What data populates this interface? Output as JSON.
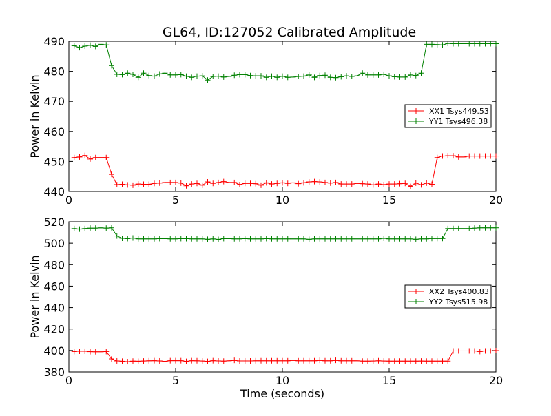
{
  "chart_data": [
    {
      "type": "line",
      "title": "GL64, ID:127052 Calibrated Amplitude",
      "xlabel": "",
      "ylabel": "Power in Kelvin",
      "xlim": [
        0,
        20
      ],
      "ylim": [
        440,
        490
      ],
      "xticks": [
        0,
        5,
        10,
        15,
        20
      ],
      "yticks": [
        440,
        450,
        460,
        470,
        480,
        490
      ],
      "grid": false,
      "legend_position": "right",
      "x": [
        0.25,
        0.5,
        0.75,
        1.0,
        1.25,
        1.5,
        1.75,
        2.0,
        2.25,
        2.5,
        2.75,
        3.0,
        3.25,
        3.5,
        3.75,
        4.0,
        4.25,
        4.5,
        4.75,
        5.0,
        5.25,
        5.5,
        5.75,
        6.0,
        6.25,
        6.5,
        6.75,
        7.0,
        7.25,
        7.5,
        7.75,
        8.0,
        8.25,
        8.5,
        8.75,
        9.0,
        9.25,
        9.5,
        9.75,
        10.0,
        10.25,
        10.5,
        10.75,
        11.0,
        11.25,
        11.5,
        11.75,
        12.0,
        12.25,
        12.5,
        12.75,
        13.0,
        13.25,
        13.5,
        13.75,
        14.0,
        14.25,
        14.5,
        14.75,
        15.0,
        15.25,
        15.5,
        15.75,
        16.0,
        16.25,
        16.5,
        16.75,
        17.0,
        17.25,
        17.5,
        17.75,
        18.0,
        18.25,
        18.5,
        18.75,
        19.0,
        19.25,
        19.5,
        19.75,
        20.0
      ],
      "series": [
        {
          "name": "XX1 Tsys449.53",
          "color": "#ff0000",
          "values": [
            451.3,
            451.5,
            452.0,
            450.8,
            451.3,
            451.3,
            451.3,
            445.7,
            442.3,
            442.4,
            442.2,
            442.1,
            442.5,
            442.4,
            442.4,
            442.7,
            442.8,
            443.0,
            443.0,
            443.0,
            442.8,
            441.9,
            442.5,
            442.7,
            442.1,
            443.2,
            442.7,
            443.0,
            443.3,
            443.0,
            443.0,
            442.3,
            442.7,
            442.7,
            442.6,
            442.1,
            442.9,
            442.5,
            442.7,
            442.9,
            442.7,
            442.9,
            442.6,
            442.9,
            443.2,
            443.3,
            443.2,
            443.0,
            442.8,
            443.0,
            442.5,
            442.5,
            442.5,
            442.7,
            442.6,
            442.5,
            442.2,
            442.5,
            442.3,
            442.5,
            442.5,
            442.6,
            442.7,
            441.7,
            442.8,
            442.2,
            442.8,
            442.4,
            451.3,
            451.8,
            451.9,
            451.9,
            451.5,
            451.5,
            451.8,
            451.8,
            451.8,
            451.8,
            451.8,
            451.8
          ]
        },
        {
          "name": "YY1 Tsys496.38",
          "color": "#008000",
          "values": [
            488.5,
            487.9,
            488.4,
            488.7,
            488.3,
            489.0,
            488.8,
            481.9,
            479.0,
            478.9,
            479.4,
            479.0,
            478.0,
            479.4,
            478.6,
            478.4,
            479.1,
            479.4,
            478.8,
            478.8,
            478.9,
            478.4,
            478.0,
            478.4,
            478.5,
            477.1,
            478.3,
            478.4,
            478.1,
            478.3,
            478.7,
            478.9,
            478.9,
            478.6,
            478.5,
            478.5,
            478.0,
            478.4,
            478.0,
            478.4,
            478.0,
            478.1,
            478.3,
            478.4,
            478.8,
            478.0,
            478.6,
            478.7,
            478.0,
            477.9,
            478.2,
            478.5,
            478.3,
            478.5,
            479.4,
            478.8,
            478.8,
            478.8,
            479.0,
            478.5,
            478.2,
            478.1,
            478.1,
            478.8,
            478.6,
            479.4,
            489.0,
            489.0,
            488.9,
            488.8,
            489.3,
            489.2,
            489.2,
            489.2,
            489.2,
            489.2,
            489.2,
            489.2,
            489.2,
            489.2
          ]
        }
      ]
    },
    {
      "type": "line",
      "title": "",
      "xlabel": "Time (seconds)",
      "ylabel": "Power in Kelvin",
      "xlim": [
        0,
        20
      ],
      "ylim": [
        380,
        520
      ],
      "xticks": [
        0,
        5,
        10,
        15,
        20
      ],
      "yticks": [
        380,
        400,
        420,
        440,
        460,
        480,
        500,
        520
      ],
      "grid": false,
      "legend_position": "right",
      "x": [
        0.25,
        0.5,
        0.75,
        1.0,
        1.25,
        1.5,
        1.75,
        2.0,
        2.25,
        2.5,
        2.75,
        3.0,
        3.25,
        3.5,
        3.75,
        4.0,
        4.25,
        4.5,
        4.75,
        5.0,
        5.25,
        5.5,
        5.75,
        6.0,
        6.25,
        6.5,
        6.75,
        7.0,
        7.25,
        7.5,
        7.75,
        8.0,
        8.25,
        8.5,
        8.75,
        9.0,
        9.25,
        9.5,
        9.75,
        10.0,
        10.25,
        10.5,
        10.75,
        11.0,
        11.25,
        11.5,
        11.75,
        12.0,
        12.25,
        12.5,
        12.75,
        13.0,
        13.25,
        13.5,
        13.75,
        14.0,
        14.25,
        14.5,
        14.75,
        15.0,
        15.25,
        15.5,
        15.75,
        16.0,
        16.25,
        16.5,
        16.75,
        17.0,
        17.25,
        17.5,
        17.75,
        18.0,
        18.25,
        18.5,
        18.75,
        19.0,
        19.25,
        19.5,
        19.75,
        20.0
      ],
      "series": [
        {
          "name": "XX2 Tsys400.83",
          "color": "#ff0000",
          "values": [
            399.0,
            399.3,
            399.3,
            398.9,
            398.8,
            398.8,
            399.0,
            392.2,
            390.3,
            390.0,
            389.6,
            390.1,
            390.0,
            390.2,
            390.4,
            390.5,
            390.3,
            389.9,
            390.5,
            390.5,
            390.5,
            389.9,
            390.5,
            390.4,
            390.2,
            389.9,
            390.5,
            390.3,
            390.1,
            390.4,
            390.8,
            390.3,
            390.3,
            390.3,
            390.4,
            390.4,
            390.4,
            390.4,
            390.4,
            390.4,
            390.4,
            390.8,
            390.4,
            390.4,
            390.4,
            390.4,
            390.8,
            390.4,
            390.4,
            390.8,
            390.4,
            390.4,
            390.4,
            390.4,
            390.1,
            390.1,
            390.2,
            390.4,
            390.2,
            390.1,
            390.1,
            390.1,
            390.1,
            390.1,
            390.1,
            390.2,
            390.1,
            390.1,
            390.1,
            390.1,
            390.1,
            399.6,
            399.6,
            399.6,
            399.6,
            399.6,
            399.0,
            399.6,
            399.6,
            399.9
          ]
        },
        {
          "name": "YY2 Tsys515.98",
          "color": "#008000",
          "values": [
            513.7,
            513.2,
            513.7,
            514.1,
            514.1,
            514.4,
            514.1,
            514.4,
            506.8,
            504.6,
            504.3,
            504.9,
            504.1,
            504.1,
            504.1,
            504.1,
            504.3,
            504.3,
            504.1,
            504.1,
            504.3,
            504.3,
            504.1,
            504.1,
            504.1,
            503.7,
            504.1,
            503.6,
            504.3,
            504.3,
            504.1,
            504.1,
            504.3,
            504.1,
            504.1,
            504.1,
            504.3,
            504.1,
            504.1,
            504.1,
            504.1,
            504.1,
            504.1,
            504.1,
            503.7,
            504.1,
            504.1,
            504.1,
            504.1,
            504.1,
            504.1,
            504.1,
            504.1,
            504.1,
            504.1,
            504.1,
            504.1,
            504.1,
            504.6,
            504.1,
            504.1,
            504.1,
            504.1,
            504.1,
            503.7,
            504.1,
            504.1,
            504.4,
            504.4,
            504.4,
            513.7,
            513.7,
            513.7,
            513.7,
            513.7,
            514.1,
            514.4,
            514.4,
            514.4,
            514.4
          ]
        }
      ]
    }
  ]
}
